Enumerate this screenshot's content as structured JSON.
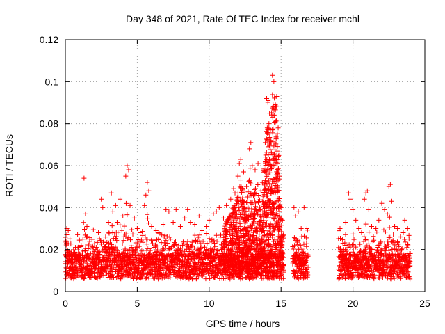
{
  "chart_data": {
    "type": "scatter",
    "title": "Day 348 of 2021, Rate Of TEC Index for receiver mchl",
    "xlabel": "GPS time / hours",
    "ylabel": "ROTI / TECUs",
    "xlim": [
      0,
      25
    ],
    "ylim": [
      0,
      0.12
    ],
    "x_ticks": [
      "0",
      "5",
      "10",
      "15",
      "20",
      "25"
    ],
    "y_ticks": [
      "0",
      "0.02",
      "0.04",
      "0.06",
      "0.08",
      "0.1",
      "0.12"
    ],
    "x_tick_values": [
      0,
      5,
      10,
      15,
      20,
      25
    ],
    "y_tick_values": [
      0,
      0.02,
      0.04,
      0.06,
      0.08,
      0.1,
      0.12
    ],
    "grid": true,
    "marker": "+",
    "color": "#ff0000",
    "series": [
      {
        "name": "ROTI",
        "points": [
          [
            0.1,
            0.03
          ],
          [
            0.2,
            0.029
          ],
          [
            0.3,
            0.018
          ],
          [
            0.5,
            0.012
          ],
          [
            0.7,
            0.021
          ],
          [
            0.9,
            0.015
          ],
          [
            1.1,
            0.022
          ],
          [
            1.3,
            0.054
          ],
          [
            1.4,
            0.037
          ],
          [
            1.5,
            0.031
          ],
          [
            1.7,
            0.025
          ],
          [
            2.0,
            0.019
          ],
          [
            2.3,
            0.028
          ],
          [
            2.5,
            0.044
          ],
          [
            2.6,
            0.04
          ],
          [
            2.8,
            0.026
          ],
          [
            3.0,
            0.033
          ],
          [
            3.2,
            0.047
          ],
          [
            3.3,
            0.038
          ],
          [
            3.5,
            0.041
          ],
          [
            3.6,
            0.033
          ],
          [
            3.8,
            0.044
          ],
          [
            4.0,
            0.036
          ],
          [
            4.2,
            0.055
          ],
          [
            4.3,
            0.06
          ],
          [
            4.4,
            0.058
          ],
          [
            4.5,
            0.041
          ],
          [
            4.8,
            0.035
          ],
          [
            5.0,
            0.03
          ],
          [
            5.2,
            0.028
          ],
          [
            5.5,
            0.041
          ],
          [
            5.6,
            0.046
          ],
          [
            5.7,
            0.052
          ],
          [
            5.8,
            0.048
          ],
          [
            6.0,
            0.031
          ],
          [
            6.3,
            0.029
          ],
          [
            6.5,
            0.028
          ],
          [
            6.8,
            0.032
          ],
          [
            7.0,
            0.039
          ],
          [
            7.2,
            0.038
          ],
          [
            7.5,
            0.033
          ],
          [
            7.7,
            0.039
          ],
          [
            8.0,
            0.031
          ],
          [
            8.3,
            0.035
          ],
          [
            8.5,
            0.039
          ],
          [
            8.7,
            0.033
          ],
          [
            9.0,
            0.032
          ],
          [
            9.3,
            0.036
          ],
          [
            9.5,
            0.029
          ],
          [
            9.8,
            0.031
          ],
          [
            10.0,
            0.034
          ],
          [
            10.3,
            0.037
          ],
          [
            10.5,
            0.038
          ],
          [
            10.7,
            0.04
          ],
          [
            11.0,
            0.035
          ],
          [
            11.2,
            0.041
          ],
          [
            11.5,
            0.044
          ],
          [
            11.7,
            0.049
          ],
          [
            11.8,
            0.047
          ],
          [
            12.0,
            0.055
          ],
          [
            12.1,
            0.061
          ],
          [
            12.2,
            0.063
          ],
          [
            12.4,
            0.057
          ],
          [
            12.6,
            0.05
          ],
          [
            12.8,
            0.068
          ],
          [
            12.9,
            0.071
          ],
          [
            13.0,
            0.06
          ],
          [
            13.2,
            0.058
          ],
          [
            13.4,
            0.061
          ],
          [
            13.6,
            0.048
          ],
          [
            13.7,
            0.052
          ],
          [
            13.9,
            0.071
          ],
          [
            14.0,
            0.092
          ],
          [
            14.1,
            0.091
          ],
          [
            14.2,
            0.085
          ],
          [
            14.3,
            0.072
          ],
          [
            14.4,
            0.103
          ],
          [
            14.5,
            0.1
          ],
          [
            14.6,
            0.089
          ],
          [
            14.7,
            0.093
          ],
          [
            14.8,
            0.078
          ],
          [
            14.9,
            0.055
          ],
          [
            15.0,
            0.04
          ],
          [
            15.1,
            0.034
          ],
          [
            15.9,
            0.04
          ],
          [
            16.0,
            0.036
          ],
          [
            16.2,
            0.038
          ],
          [
            16.4,
            0.03
          ],
          [
            16.6,
            0.04
          ],
          [
            16.8,
            0.03
          ],
          [
            19.1,
            0.03
          ],
          [
            19.3,
            0.023
          ],
          [
            19.5,
            0.033
          ],
          [
            19.7,
            0.047
          ],
          [
            19.8,
            0.044
          ],
          [
            20.0,
            0.039
          ],
          [
            20.2,
            0.034
          ],
          [
            20.4,
            0.03
          ],
          [
            20.6,
            0.028
          ],
          [
            20.8,
            0.044
          ],
          [
            20.9,
            0.047
          ],
          [
            21.0,
            0.048
          ],
          [
            21.1,
            0.039
          ],
          [
            21.3,
            0.031
          ],
          [
            21.6,
            0.03
          ],
          [
            21.8,
            0.034
          ],
          [
            22.0,
            0.042
          ],
          [
            22.2,
            0.039
          ],
          [
            22.4,
            0.037
          ],
          [
            22.5,
            0.05
          ],
          [
            22.6,
            0.051
          ],
          [
            22.7,
            0.043
          ],
          [
            22.9,
            0.031
          ],
          [
            23.1,
            0.03
          ],
          [
            23.3,
            0.026
          ],
          [
            23.5,
            0.028
          ],
          [
            23.6,
            0.034
          ],
          [
            23.8,
            0.03
          ],
          [
            23.9,
            0.025
          ]
        ],
        "gaps": [
          [
            15.2,
            15.8
          ],
          [
            16.9,
            19.0
          ]
        ]
      }
    ]
  }
}
